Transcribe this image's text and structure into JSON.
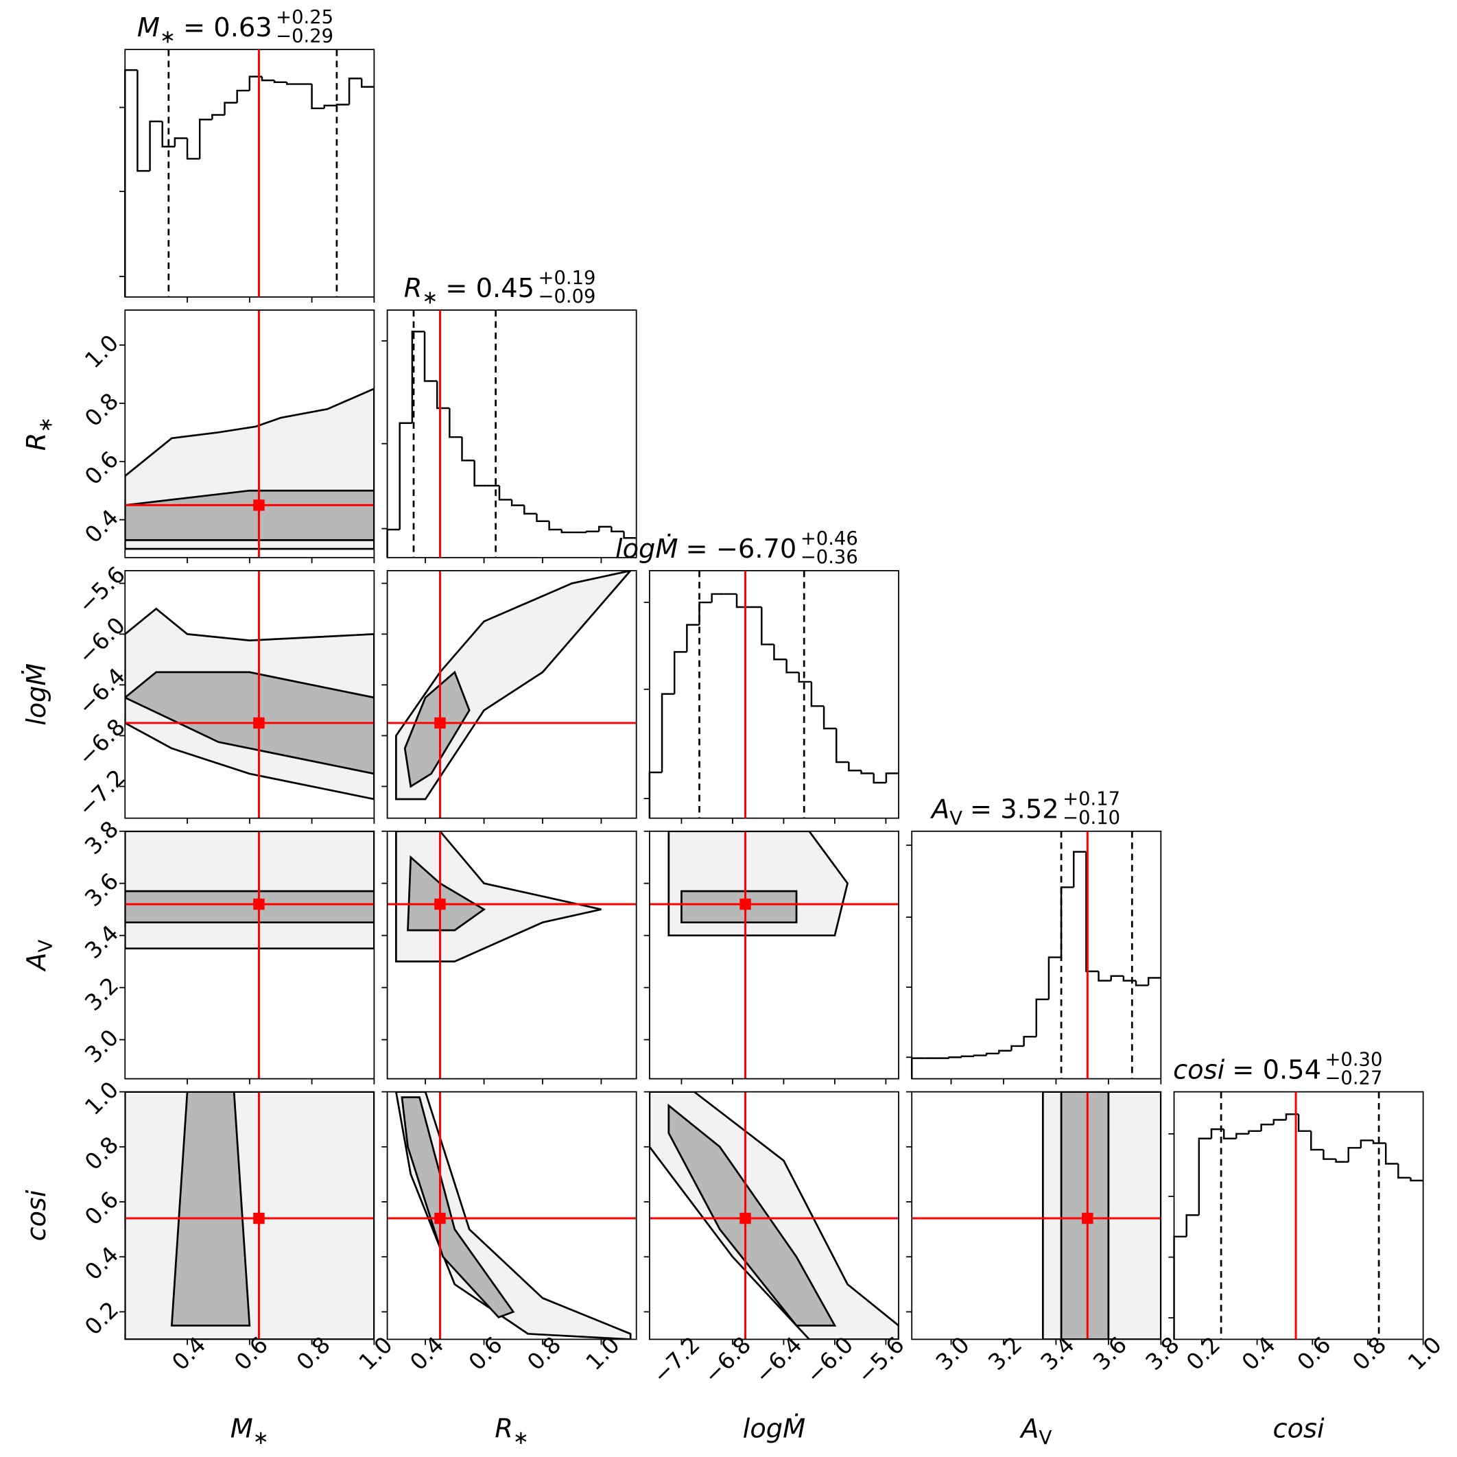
{
  "chart_data": {
    "type": "corner",
    "params": [
      {
        "label": {
          "text": "M",
          "sub": "∗"
        },
        "title": {
          "text": "= 0.63",
          "plus": "+0.25",
          "minus": "−0.29"
        },
        "xlim": [
          0.2,
          1.0
        ],
        "ticks": [
          0.4,
          0.6,
          0.8,
          {
            "value": 1.0,
            "label": "1.0"
          }
        ],
        "truth": 0.63,
        "quantiles": [
          0.34,
          0.88
        ],
        "hist": {
          "bins": [
            0.2,
            0.24,
            0.28,
            0.32,
            0.36,
            0.4,
            0.44,
            0.48,
            0.52,
            0.56,
            0.6,
            0.64,
            0.68,
            0.72,
            0.76,
            0.8,
            0.84,
            0.88,
            0.92,
            0.96,
            1.0
          ],
          "counts": [
            243,
            135,
            188,
            161,
            170,
            148,
            190,
            195,
            208,
            221,
            236,
            232,
            230,
            228,
            228,
            202,
            205,
            206,
            234,
            225
          ],
          "ylim": [
            0,
            265
          ],
          "yticks": [
            22,
            113,
            203
          ]
        }
      },
      {
        "label": {
          "text": "R",
          "sub": "∗"
        },
        "title": {
          "text": "= 0.45",
          "plus": "+0.19",
          "minus": "−0.09"
        },
        "xlim": [
          0.27,
          1.12
        ],
        "ticks": [
          0.4,
          0.6,
          0.8,
          {
            "value": 1.0,
            "label": "1.0"
          }
        ],
        "truth": 0.45,
        "quantiles": [
          0.36,
          0.64
        ],
        "hist": {
          "bins": [
            0.27,
            0.3125,
            0.355,
            0.3975,
            0.44,
            0.4825,
            0.525,
            0.5675,
            0.61,
            0.6525,
            0.695,
            0.7375,
            0.78,
            0.8225,
            0.865,
            0.9075,
            0.95,
            0.9925,
            1.035,
            1.0775,
            1.12
          ],
          "counts": [
            30,
            144,
            242,
            189,
            160,
            129,
            104,
            77,
            77,
            62,
            56,
            47,
            39,
            30,
            27,
            27,
            28,
            33,
            28,
            21
          ],
          "ylim": [
            0,
            265
          ],
          "yticks": [
            31,
            122,
            232
          ]
        }
      },
      {
        "label": {
          "text": "logṀ"
        },
        "title": {
          "text": "= −6.70",
          "plus": "+0.46",
          "minus": "−0.36"
        },
        "xlim": [
          -7.45,
          -5.5
        ],
        "ticks": [
          {
            "value": -7.2,
            "label": "−7.2"
          },
          {
            "value": -6.8,
            "label": "−6.8"
          },
          {
            "value": -6.4,
            "label": "−6.4"
          },
          {
            "value": -6.0,
            "label": "−6.0"
          },
          {
            "value": -5.6,
            "label": "−5.6"
          }
        ],
        "truth": -6.7,
        "quantiles": [
          -7.06,
          -6.24
        ],
        "hist": {
          "bins": [
            -7.45,
            -7.3525,
            -7.255,
            -7.1575,
            -7.06,
            -6.9625,
            -6.865,
            -6.7675,
            -6.67,
            -6.5725,
            -6.475,
            -6.3775,
            -6.28,
            -6.1825,
            -6.085,
            -5.9875,
            -5.89,
            -5.7925,
            -5.695,
            -5.5975,
            -5.5
          ],
          "counts": [
            49,
            133,
            178,
            207,
            231,
            240,
            240,
            226,
            226,
            186,
            170,
            156,
            146,
            120,
            96,
            60,
            51,
            48,
            38,
            48
          ],
          "ylim": [
            0,
            265
          ],
          "yticks": [
            21,
            138,
            231
          ]
        }
      },
      {
        "label": {
          "text": "A",
          "sub": "V"
        },
        "title": {
          "text": "= 3.52",
          "plus": "+0.17",
          "minus": "−0.10"
        },
        "xlim": [
          2.85,
          3.8
        ],
        "ticks": [
          {
            "value": 3.0,
            "label": "3.0"
          },
          3.2,
          3.4,
          3.6,
          3.8
        ],
        "truth": 3.52,
        "quantiles": [
          3.42,
          3.69
        ],
        "hist": {
          "bins": [
            2.85,
            2.8975,
            2.945,
            2.9925,
            3.04,
            3.0875,
            3.135,
            3.1825,
            3.23,
            3.2775,
            3.325,
            3.3725,
            3.42,
            3.4675,
            3.515,
            3.5625,
            3.61,
            3.6575,
            3.705,
            3.7525,
            3.8
          ],
          "counts": [
            22,
            22,
            22,
            23,
            24,
            25,
            27,
            30,
            35,
            45,
            85,
            130,
            205,
            243,
            115,
            105,
            110,
            105,
            100,
            108
          ],
          "ylim": [
            0,
            265
          ],
          "yticks": [
            23,
            98,
            173,
            250
          ]
        }
      },
      {
        "label": {
          "text": "cosi"
        },
        "title": {
          "text": "= 0.54",
          "plus": "+0.30",
          "minus": "−0.27"
        },
        "xlim": [
          0.1,
          1.0
        ],
        "ticks": [
          0.2,
          0.4,
          0.6,
          0.8,
          {
            "value": 1.0,
            "label": "1.0"
          }
        ],
        "truth": 0.54,
        "quantiles": [
          0.27,
          0.84
        ],
        "hist": {
          "bins": [
            0.1,
            0.145,
            0.19,
            0.235,
            0.28,
            0.325,
            0.37,
            0.415,
            0.46,
            0.505,
            0.55,
            0.595,
            0.64,
            0.685,
            0.73,
            0.775,
            0.82,
            0.865,
            0.91,
            0.955,
            1.0
          ],
          "counts": [
            110,
            133,
            215,
            225,
            215,
            220,
            223,
            230,
            235,
            241,
            223,
            203,
            193,
            190,
            205,
            213,
            210,
            188,
            173,
            170
          ],
          "ylim": [
            0,
            265
          ],
          "yticks": [
            23,
            88,
            153,
            220
          ]
        }
      }
    ],
    "pairs": [
      {
        "x": 0,
        "y": 1,
        "contours": [
          {
            "x": [
              0.2,
              1.0,
              1.0,
              0.85,
              0.7,
              0.62,
              0.5,
              0.35,
              0.2
            ],
            "y": [
              0.3,
              0.3,
              0.85,
              0.78,
              0.75,
              0.72,
              0.7,
              0.68,
              0.55
            ]
          },
          {
            "x": [
              0.2,
              1.0,
              1.0,
              0.6,
              0.2
            ],
            "y": [
              0.33,
              0.33,
              0.5,
              0.5,
              0.45
            ]
          }
        ]
      },
      {
        "x": 0,
        "y": 2,
        "contours": [
          {
            "x": [
              0.2,
              0.35,
              0.6,
              1.0,
              1.0,
              0.6,
              0.4,
              0.3,
              0.2
            ],
            "y": [
              -6.7,
              -6.9,
              -7.1,
              -7.3,
              -6.0,
              -6.05,
              -6.0,
              -5.8,
              -6.0
            ]
          },
          {
            "x": [
              0.2,
              0.5,
              1.0,
              1.0,
              0.6,
              0.3
            ],
            "y": [
              -6.5,
              -6.85,
              -7.1,
              -6.5,
              -6.3,
              -6.3
            ]
          }
        ]
      },
      {
        "x": 1,
        "y": 2,
        "contours": [
          {
            "x": [
              0.3,
              0.4,
              0.6,
              0.8,
              1.1,
              0.9,
              0.6,
              0.45,
              0.3
            ],
            "y": [
              -7.3,
              -7.3,
              -6.6,
              -6.3,
              -5.5,
              -5.6,
              -5.9,
              -6.3,
              -6.8
            ]
          },
          {
            "x": [
              0.35,
              0.42,
              0.55,
              0.5,
              0.4,
              0.33
            ],
            "y": [
              -7.2,
              -7.1,
              -6.6,
              -6.3,
              -6.5,
              -6.9
            ]
          }
        ]
      },
      {
        "x": 0,
        "y": 3,
        "contours": [
          {
            "x": [
              0.2,
              1.0,
              1.0,
              0.2
            ],
            "y": [
              3.35,
              3.35,
              3.8,
              3.8
            ]
          },
          {
            "x": [
              0.2,
              1.0,
              1.0,
              0.2
            ],
            "y": [
              3.45,
              3.45,
              3.57,
              3.57
            ]
          }
        ]
      },
      {
        "x": 1,
        "y": 3,
        "contours": [
          {
            "x": [
              0.3,
              0.5,
              0.8,
              1.0,
              0.6,
              0.45,
              0.3
            ],
            "y": [
              3.3,
              3.3,
              3.45,
              3.5,
              3.6,
              3.8,
              3.8
            ]
          },
          {
            "x": [
              0.34,
              0.5,
              0.6,
              0.45,
              0.35
            ],
            "y": [
              3.42,
              3.42,
              3.5,
              3.6,
              3.7
            ]
          }
        ]
      },
      {
        "x": 2,
        "y": 3,
        "contours": [
          {
            "x": [
              -7.3,
              -6.0,
              -5.9,
              -6.2,
              -7.3
            ],
            "y": [
              3.4,
              3.4,
              3.6,
              3.8,
              3.8
            ]
          },
          {
            "x": [
              -7.2,
              -6.3,
              -6.3,
              -7.2
            ],
            "y": [
              3.45,
              3.45,
              3.57,
              3.57
            ]
          }
        ]
      },
      {
        "x": 0,
        "y": 4,
        "contours": [
          {
            "x": [
              0.2,
              1.0,
              1.0,
              0.2
            ],
            "y": [
              0.1,
              0.1,
              1.0,
              1.0
            ]
          },
          {
            "x": [
              0.35,
              0.6,
              0.55,
              0.4
            ],
            "y": [
              0.15,
              0.15,
              1.0,
              1.0
            ]
          }
        ]
      },
      {
        "x": 1,
        "y": 4,
        "contours": [
          {
            "x": [
              0.3,
              0.4,
              0.55,
              0.8,
              1.1,
              1.1,
              0.75,
              0.5,
              0.35
            ],
            "y": [
              1.0,
              1.0,
              0.5,
              0.25,
              0.12,
              0.1,
              0.12,
              0.3,
              0.7
            ]
          },
          {
            "x": [
              0.32,
              0.38,
              0.5,
              0.7,
              0.65,
              0.46,
              0.34
            ],
            "y": [
              0.98,
              0.98,
              0.5,
              0.2,
              0.18,
              0.4,
              0.8
            ]
          }
        ]
      },
      {
        "x": 2,
        "y": 4,
        "contours": [
          {
            "x": [
              -7.45,
              -7.1,
              -6.4,
              -5.9,
              -5.5,
              -5.5,
              -6.2,
              -6.8,
              -7.45
            ],
            "y": [
              1.0,
              1.0,
              0.75,
              0.3,
              0.15,
              0.1,
              0.1,
              0.4,
              0.8
            ]
          },
          {
            "x": [
              -7.3,
              -6.9,
              -6.3,
              -6.0,
              -6.3,
              -6.9,
              -7.3
            ],
            "y": [
              0.95,
              0.8,
              0.4,
              0.15,
              0.15,
              0.5,
              0.85
            ]
          }
        ]
      },
      {
        "x": 3,
        "y": 4,
        "contours": [
          {
            "x": [
              3.35,
              3.8,
              3.8,
              3.35
            ],
            "y": [
              0.1,
              0.1,
              1.0,
              1.0
            ]
          },
          {
            "x": [
              3.42,
              3.6,
              3.6,
              3.42
            ],
            "y": [
              0.1,
              0.1,
              1.0,
              1.0
            ]
          }
        ]
      }
    ]
  }
}
